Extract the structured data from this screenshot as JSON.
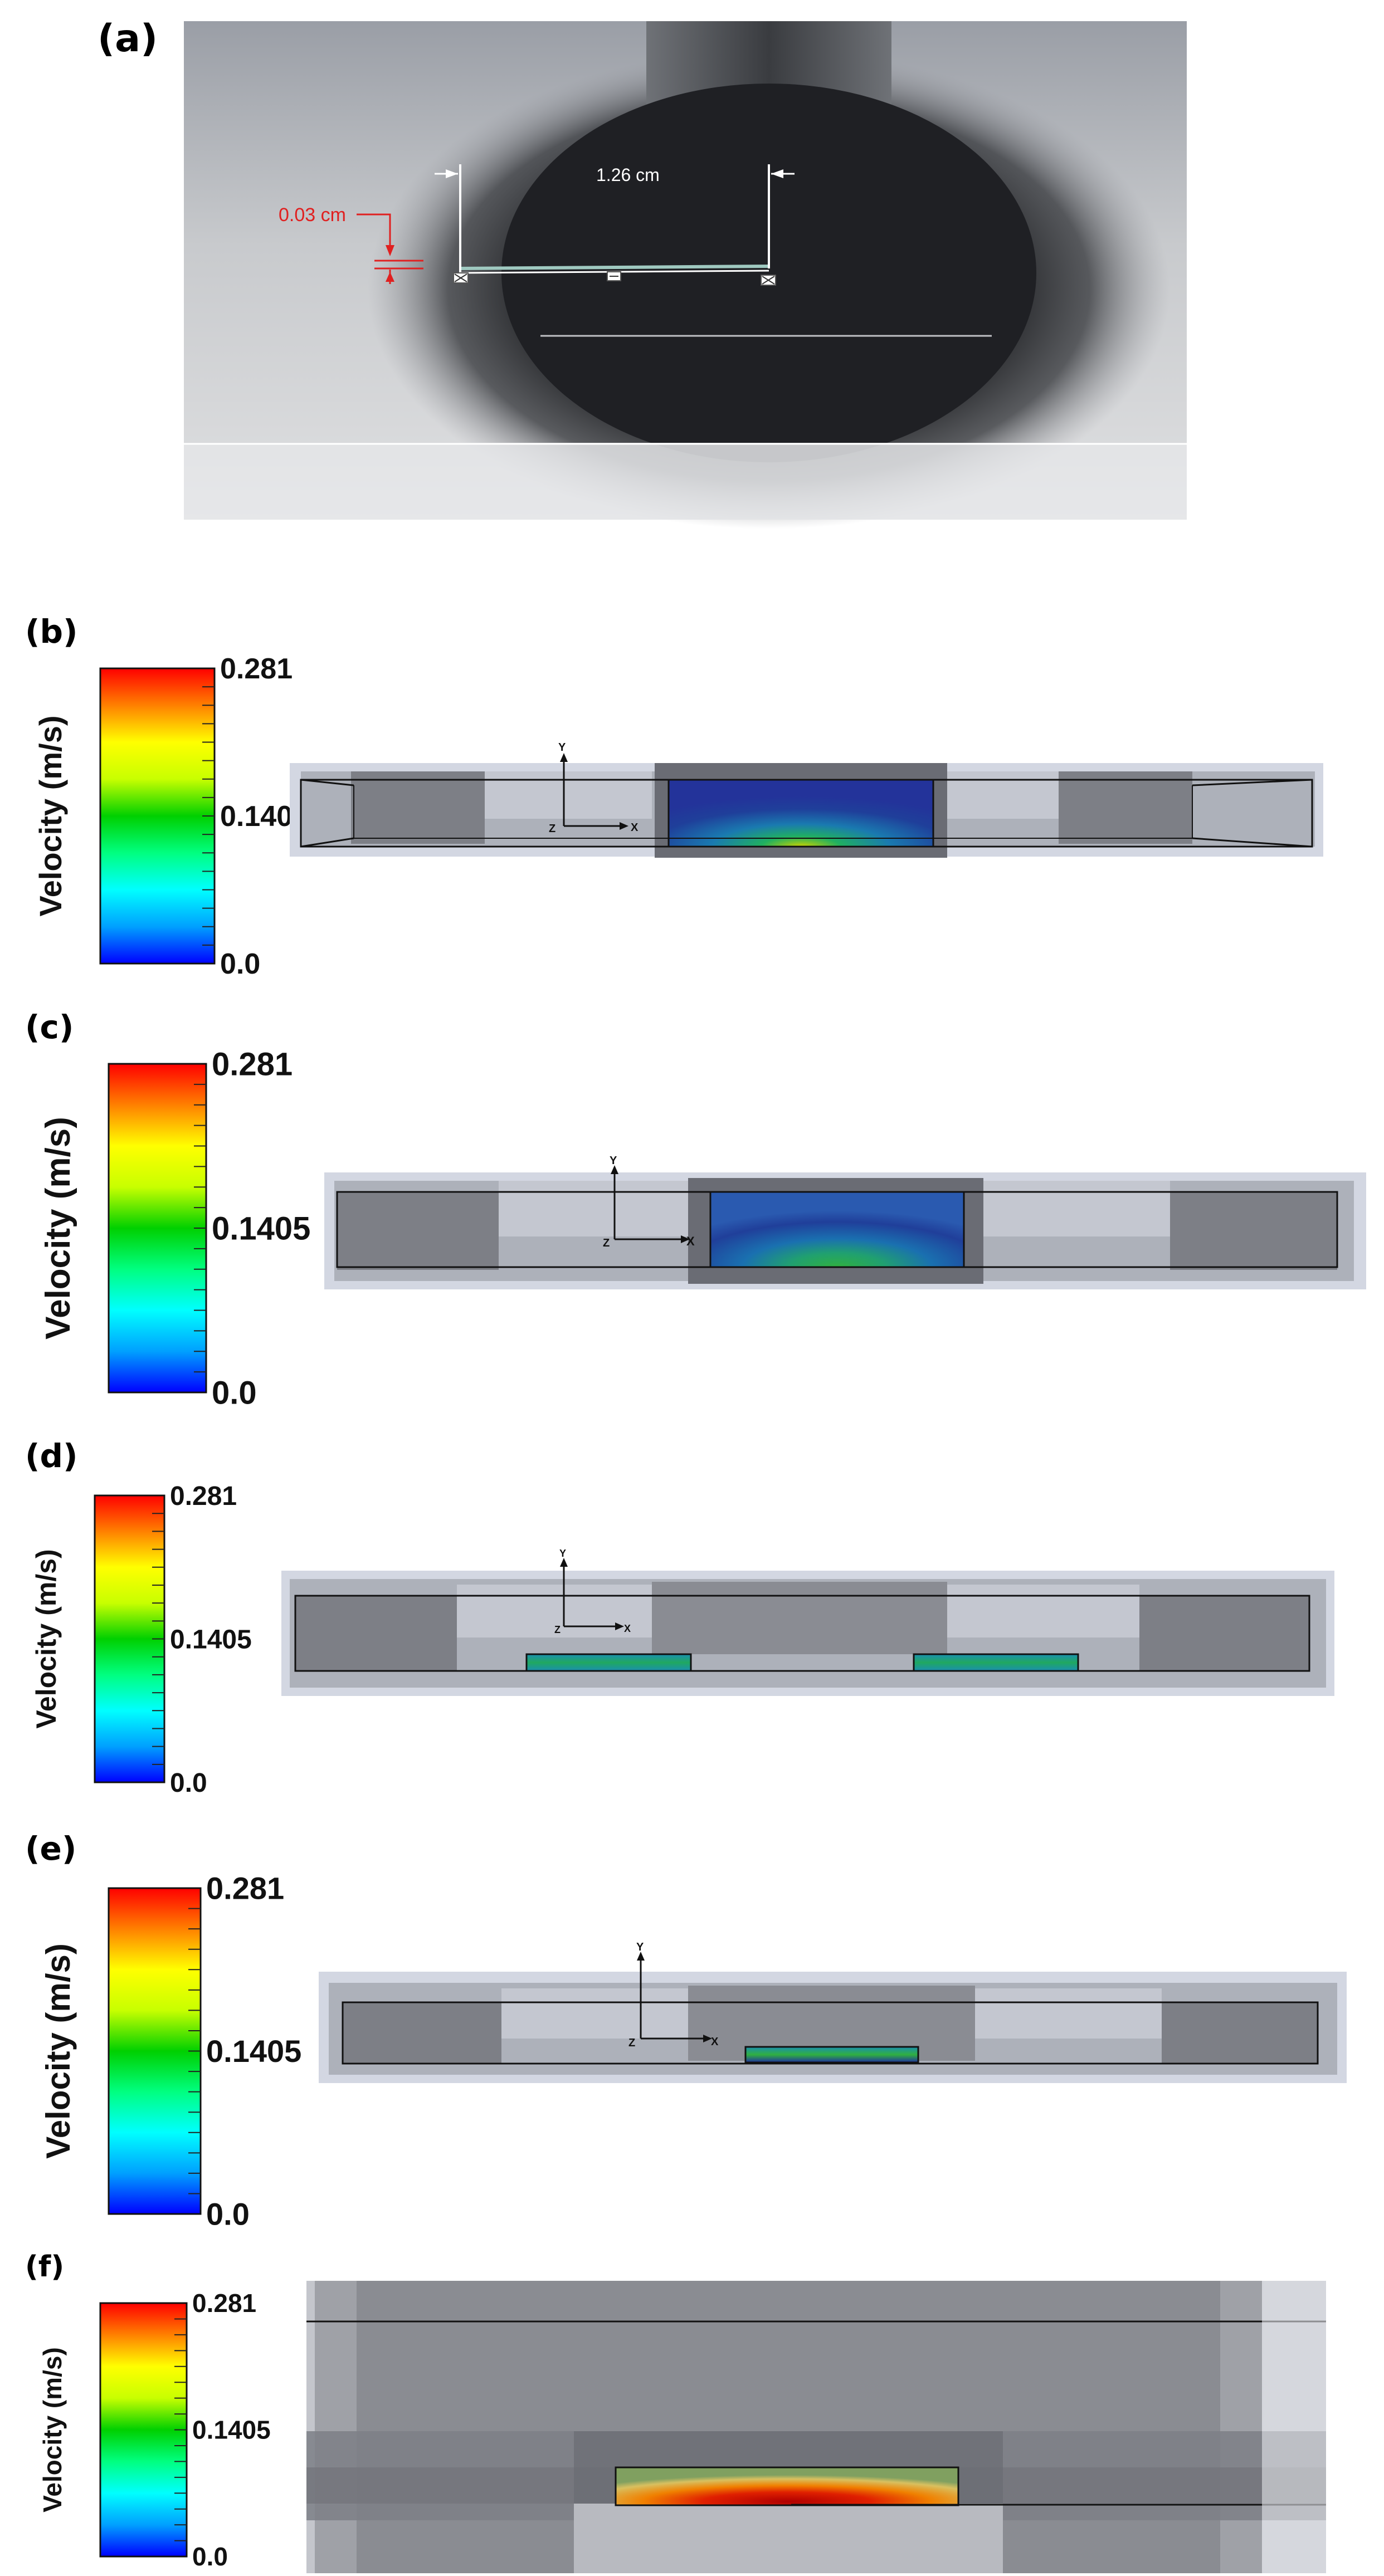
{
  "panel_a": {
    "label": "(a)",
    "dim_width": "1.26 cm",
    "dim_gap": "0.03 cm"
  },
  "colorbar": {
    "title": "Velocity (m/s)",
    "max": "0.281",
    "mid": "0.1405",
    "min": "0.0",
    "colors": [
      "#0000ff",
      "#00a0ff",
      "#00ffff",
      "#00ff80",
      "#00d000",
      "#c8ff00",
      "#ffff00",
      "#ff8000",
      "#ff0000"
    ]
  },
  "panels": [
    {
      "label": "(b)"
    },
    {
      "label": "(c)"
    },
    {
      "label": "(d)"
    },
    {
      "label": "(e)"
    },
    {
      "label": "(f)"
    }
  ],
  "axes": {
    "x": "X",
    "y": "Y",
    "z": "Z"
  }
}
